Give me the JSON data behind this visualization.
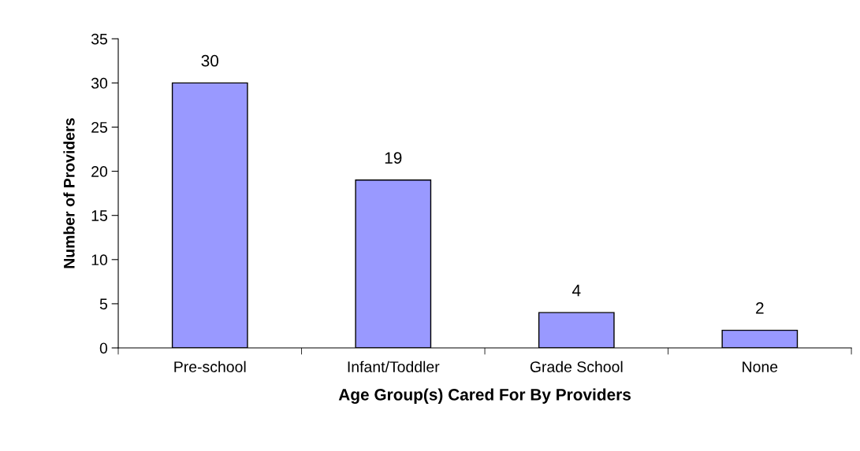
{
  "chart_data": {
    "type": "bar",
    "xlabel": "Age Group(s) Cared For By Providers",
    "ylabel": "Number of Providers",
    "categories": [
      "Pre-school",
      "Infant/Toddler",
      "Grade School",
      "None"
    ],
    "values": [
      30,
      19,
      4,
      2
    ],
    "color": "#9999ff",
    "ylim": [
      0,
      35
    ],
    "yticks": [
      0,
      5,
      10,
      15,
      20,
      25,
      30,
      35
    ],
    "grid": false,
    "data_labels": true
  }
}
